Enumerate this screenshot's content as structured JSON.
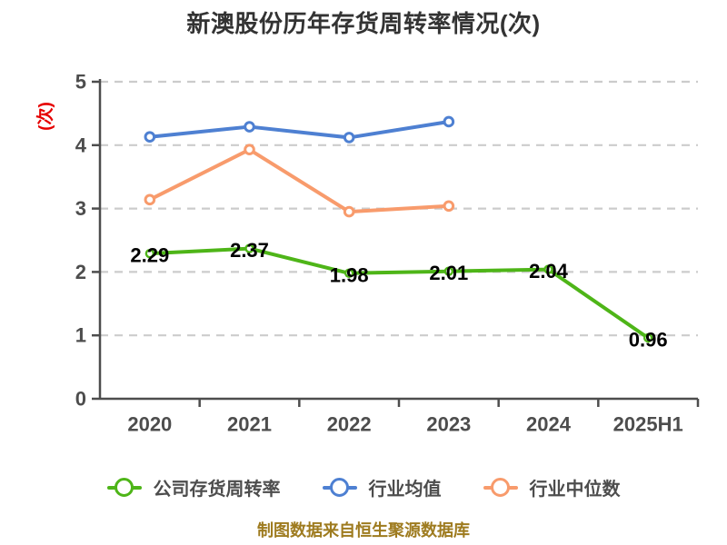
{
  "title": "新澳股份历年存货周转率情况(次)",
  "y_axis_unit": "(次)",
  "footer": "制图数据来自恒生聚源数据库",
  "colors": {
    "title_text": "#333333",
    "axis": "#4d4d4d",
    "tick_text": "#4d4d4d",
    "gridline": "#cccccc",
    "data_label": "#000000",
    "legend_text": "#4d4d4d",
    "footer_text": "#9e7b1f",
    "unit_label": "#e60000",
    "company_series": "#4eb518",
    "industry_mean_series": "#4e80d2",
    "industry_median_series": "#f89b6c"
  },
  "chart_data": {
    "type": "line",
    "title": "新澳股份历年存货周转率情况(次)",
    "categories": [
      "2020",
      "2021",
      "2022",
      "2023",
      "2024",
      "2025H1"
    ],
    "series": [
      {
        "name": "公司存货周转率",
        "color": "#4eb518",
        "values": [
          2.29,
          2.37,
          1.98,
          2.01,
          2.04,
          0.96
        ],
        "labeled": true
      },
      {
        "name": "行业均值",
        "color": "#4e80d2",
        "values": [
          4.13,
          4.29,
          4.12,
          4.37,
          null,
          null
        ],
        "labeled": false
      },
      {
        "name": "行业中位数",
        "color": "#f89b6c",
        "values": [
          3.14,
          3.93,
          2.95,
          3.04,
          null,
          null
        ],
        "labeled": false
      }
    ],
    "ylim": [
      0,
      5
    ],
    "yticks": [
      0,
      1,
      2,
      3,
      4,
      5
    ],
    "grid": "horizontal-dashed",
    "legend_position": "bottom",
    "xlabel": "",
    "ylabel": "次"
  }
}
